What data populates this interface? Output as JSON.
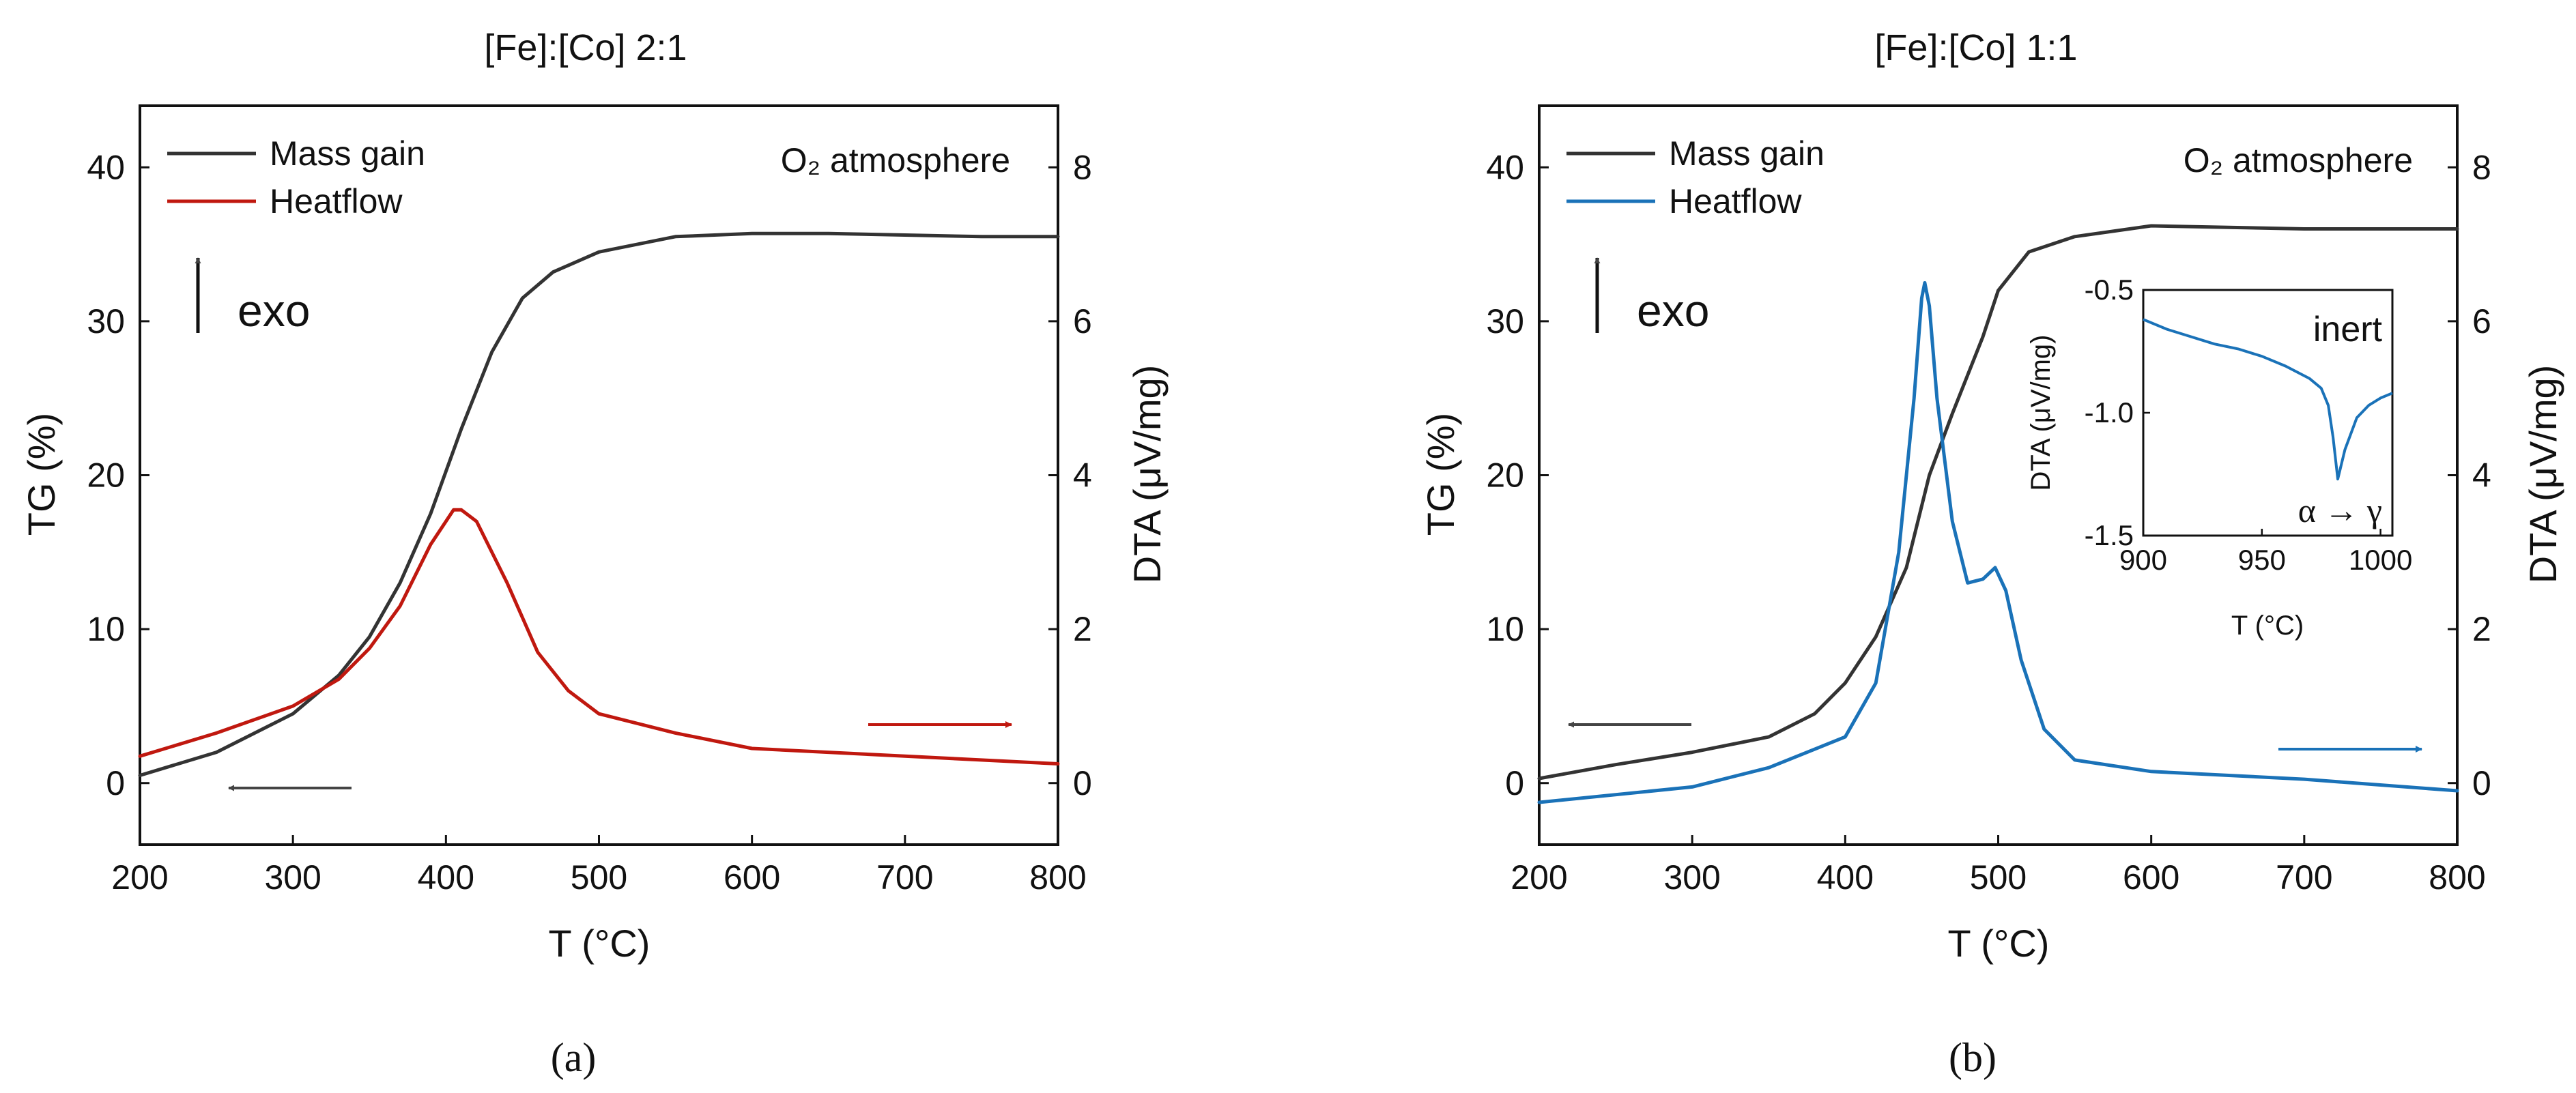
{
  "chart_data": [
    {
      "type": "line",
      "panel_label": "(a)",
      "title": "[Fe]:[Co] 2:1",
      "xlabel": "T (°C)",
      "ylabel": "TG (%)",
      "y2label": "DTA (μV/mg)",
      "xlim": [
        200,
        800
      ],
      "ylim": [
        -4,
        44
      ],
      "y2lim": [
        -0.8,
        8.8
      ],
      "x_ticks": [
        200,
        300,
        400,
        500,
        600,
        700,
        800
      ],
      "y_ticks": [
        0,
        10,
        20,
        30,
        40
      ],
      "y2_ticks": [
        0,
        2,
        4,
        6,
        8
      ],
      "annotation": "O₂ atmosphere",
      "exo_label": "exo",
      "series": [
        {
          "name": "Mass gain",
          "axis": "left",
          "color": "#333333",
          "x": [
            200,
            250,
            300,
            330,
            350,
            370,
            390,
            410,
            430,
            450,
            470,
            500,
            550,
            600,
            650,
            700,
            750,
            800
          ],
          "y": [
            0.5,
            2,
            4.5,
            7,
            9.5,
            13,
            17.5,
            23,
            28,
            31.5,
            33.2,
            34.5,
            35.5,
            35.7,
            35.7,
            35.6,
            35.5,
            35.5
          ]
        },
        {
          "name": "Heatflow",
          "axis": "right",
          "color": "#c0180f",
          "x": [
            200,
            250,
            300,
            330,
            350,
            370,
            390,
            405,
            410,
            420,
            440,
            460,
            480,
            500,
            550,
            600,
            700,
            800
          ],
          "y": [
            0.35,
            0.65,
            1.0,
            1.35,
            1.75,
            2.3,
            3.1,
            3.55,
            3.55,
            3.4,
            2.6,
            1.7,
            1.2,
            0.9,
            0.65,
            0.45,
            0.35,
            0.25
          ]
        }
      ]
    },
    {
      "type": "line",
      "panel_label": "(b)",
      "title": "[Fe]:[Co] 1:1",
      "xlabel": "T (°C)",
      "ylabel": "TG (%)",
      "y2label": "DTA (μV/mg)",
      "xlim": [
        200,
        800
      ],
      "ylim": [
        -4,
        44
      ],
      "y2lim": [
        -0.8,
        8.8
      ],
      "x_ticks": [
        200,
        300,
        400,
        500,
        600,
        700,
        800
      ],
      "y_ticks": [
        0,
        10,
        20,
        30,
        40
      ],
      "y2_ticks": [
        0,
        2,
        4,
        6,
        8
      ],
      "annotation": "O₂ atmosphere",
      "exo_label": "exo",
      "series": [
        {
          "name": "Mass gain",
          "axis": "left",
          "color": "#333333",
          "x": [
            200,
            250,
            300,
            350,
            380,
            400,
            420,
            440,
            455,
            470,
            490,
            500,
            520,
            550,
            600,
            700,
            800
          ],
          "y": [
            0.3,
            1.2,
            2.0,
            3.0,
            4.5,
            6.5,
            9.5,
            14,
            20,
            24,
            29,
            32,
            34.5,
            35.5,
            36.2,
            36.0,
            36.0
          ]
        },
        {
          "name": "Heatflow",
          "axis": "right",
          "color": "#1a72b8",
          "x": [
            200,
            300,
            350,
            400,
            420,
            435,
            445,
            450,
            452,
            455,
            460,
            470,
            480,
            490,
            498,
            505,
            515,
            530,
            550,
            600,
            700,
            800
          ],
          "y": [
            -0.25,
            -0.05,
            0.2,
            0.6,
            1.3,
            3.0,
            5.0,
            6.3,
            6.5,
            6.2,
            5.0,
            3.4,
            2.6,
            2.65,
            2.8,
            2.5,
            1.6,
            0.7,
            0.3,
            0.15,
            0.05,
            -0.1
          ]
        }
      ],
      "inset": {
        "type": "line",
        "xlabel": "T (°C)",
        "ylabel": "DTA (μV/mg)",
        "xlim": [
          900,
          1005
        ],
        "ylim": [
          -1.5,
          -0.5
        ],
        "x_ticks": [
          900,
          950,
          1000
        ],
        "y_ticks": [
          -0.5,
          -1.0,
          -1.5
        ],
        "annotation": "inert",
        "transition_label": "α → γ",
        "series": [
          {
            "color": "#1a72b8",
            "x": [
              900,
              910,
              920,
              930,
              940,
              950,
              960,
              970,
              975,
              978,
              980,
              982,
              985,
              990,
              995,
              1000,
              1005
            ],
            "y": [
              -0.62,
              -0.66,
              -0.69,
              -0.72,
              -0.74,
              -0.77,
              -0.81,
              -0.86,
              -0.9,
              -0.97,
              -1.1,
              -1.27,
              -1.15,
              -1.02,
              -0.97,
              -0.94,
              -0.92
            ]
          }
        ]
      }
    }
  ]
}
